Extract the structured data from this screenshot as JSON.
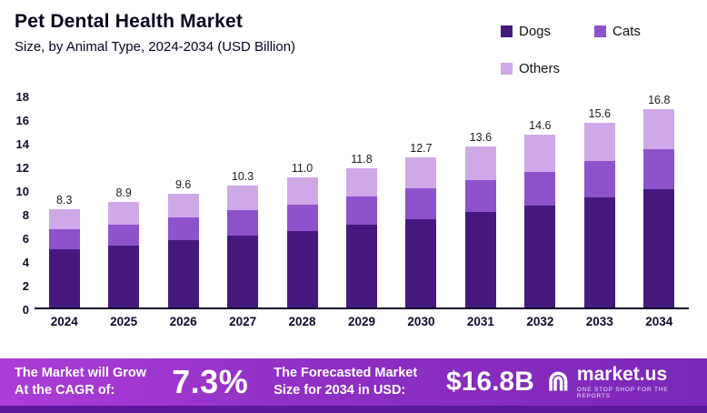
{
  "header": {
    "title": "Pet Dental Health Market",
    "subtitle": "Size, by Animal Type, 2024-2034 (USD Billion)"
  },
  "legend": [
    {
      "label": "Dogs",
      "color": "#45197e"
    },
    {
      "label": "Cats",
      "color": "#8e52cc"
    },
    {
      "label": "Others",
      "color": "#cfa8e8"
    }
  ],
  "chart_data": {
    "type": "bar",
    "stacked": true,
    "title": "Pet Dental Health Market Size, by Animal Type, 2024-2034 (USD Billion)",
    "xlabel": "",
    "ylabel": "USD Billion",
    "ylim": [
      0,
      18
    ],
    "yticks": [
      0,
      2,
      4,
      6,
      8,
      10,
      12,
      14,
      16,
      18
    ],
    "grid": false,
    "legend_position": "top-right",
    "categories": [
      "2024",
      "2025",
      "2026",
      "2027",
      "2028",
      "2029",
      "2030",
      "2031",
      "2032",
      "2033",
      "2034"
    ],
    "totals": [
      8.3,
      8.9,
      9.6,
      10.3,
      11.0,
      11.8,
      12.7,
      13.6,
      14.6,
      15.6,
      16.8
    ],
    "series": [
      {
        "name": "Dogs",
        "color": "#45197e",
        "values": [
          4.9,
          5.2,
          5.7,
          6.1,
          6.5,
          7.0,
          7.5,
          8.1,
          8.6,
          9.3,
          10.0
        ]
      },
      {
        "name": "Cats",
        "color": "#8e52cc",
        "values": [
          1.7,
          1.8,
          1.9,
          2.1,
          2.2,
          2.4,
          2.6,
          2.7,
          2.9,
          3.1,
          3.4
        ]
      },
      {
        "name": "Others",
        "color": "#cfa8e8",
        "values": [
          1.7,
          1.9,
          2.0,
          2.1,
          2.3,
          2.4,
          2.6,
          2.8,
          3.1,
          3.2,
          3.4
        ]
      }
    ]
  },
  "banner": {
    "cagr_label": "The Market will Grow At the CAGR of:",
    "cagr_value": "7.3%",
    "forecast_label": "The Forecasted Market Size for 2034 in USD:",
    "forecast_value": "$16.8B",
    "brand": "market.us",
    "brand_tagline": "One Stop Shop For The Reports",
    "banner_gradient": [
      "#ac3ed6",
      "#7b27b8"
    ],
    "strip_color": "#5a189a"
  }
}
